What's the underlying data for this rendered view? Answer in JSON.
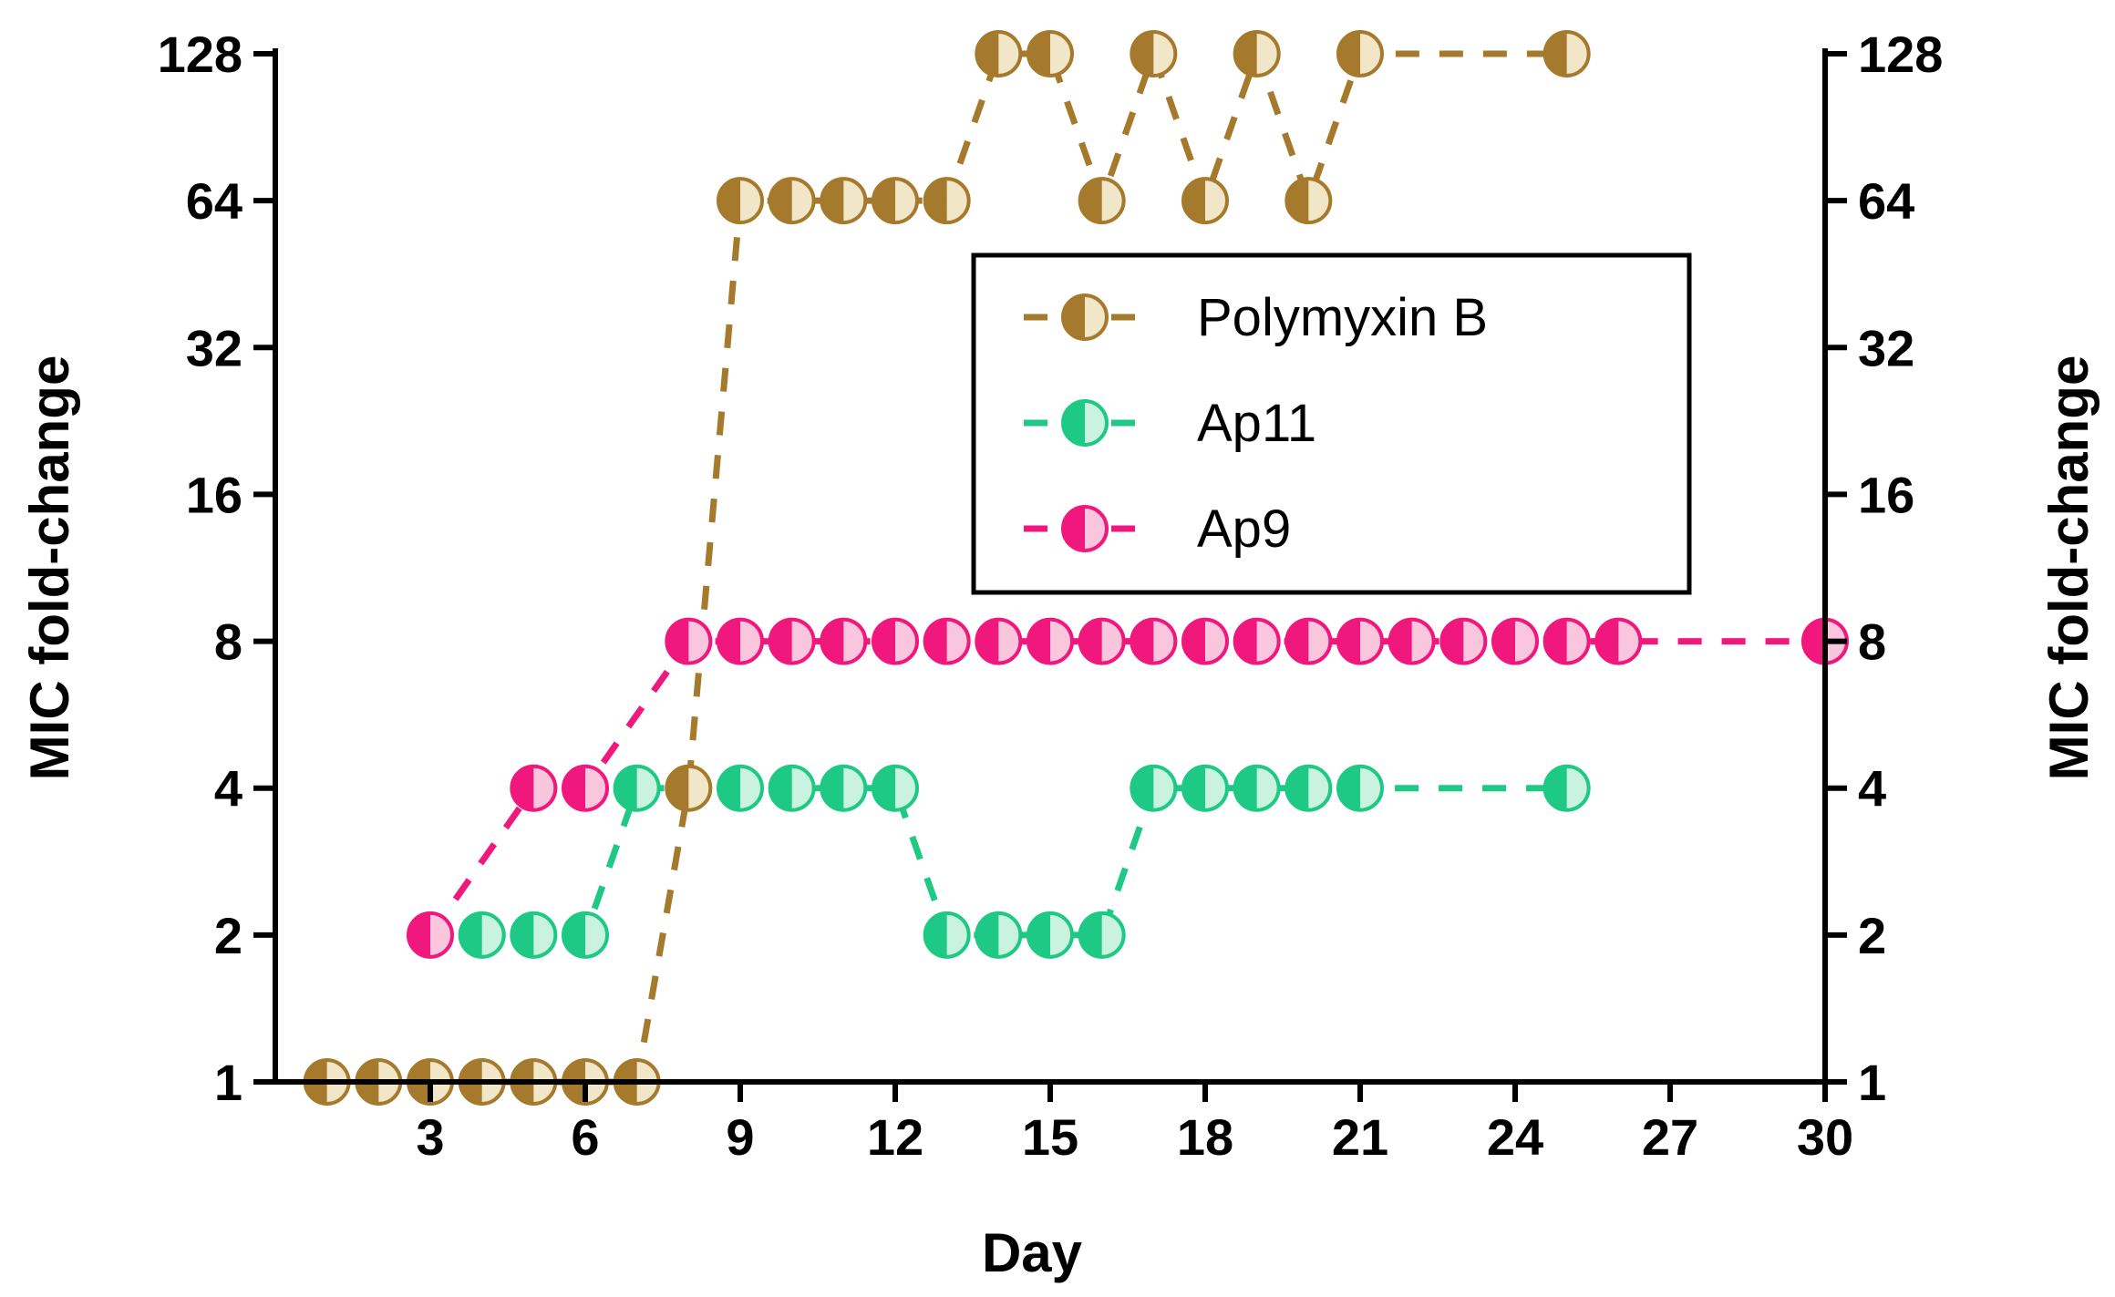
{
  "chart_data": {
    "type": "line",
    "xlabel": "Day",
    "ylabel": "MIC fold-change",
    "ylabel_right": "MIC fold-change",
    "xlim": [
      0,
      30
    ],
    "x_ticks": [
      3,
      6,
      9,
      12,
      15,
      18,
      21,
      24,
      27,
      30
    ],
    "y_scale": "log2",
    "ylim": [
      1,
      128
    ],
    "y_ticks": [
      1,
      2,
      4,
      8,
      16,
      32,
      64,
      128
    ],
    "legend_position": "upper-right-inside",
    "series": [
      {
        "name": "Polymyxin B",
        "color": "#a57a2c",
        "fill_light": "#f1e6c8",
        "x": [
          1,
          2,
          3,
          4,
          5,
          6,
          7,
          8,
          9,
          10,
          11,
          12,
          13,
          14,
          15,
          16,
          17,
          18,
          19,
          20,
          21,
          25
        ],
        "y": [
          1,
          1,
          1,
          1,
          1,
          1,
          1,
          4,
          64,
          64,
          64,
          64,
          64,
          128,
          128,
          64,
          128,
          64,
          128,
          64,
          128,
          128
        ]
      },
      {
        "name": "Ap11",
        "color": "#1ec985",
        "fill_light": "#c9f2df",
        "x": [
          4,
          5,
          6,
          7,
          9,
          10,
          11,
          12,
          13,
          14,
          15,
          16,
          17,
          18,
          19,
          20,
          21,
          25
        ],
        "y": [
          2,
          2,
          2,
          4,
          4,
          4,
          4,
          4,
          2,
          2,
          2,
          2,
          4,
          4,
          4,
          4,
          4,
          4
        ]
      },
      {
        "name": "Ap9",
        "color": "#f0187c",
        "fill_light": "#f9c6dd",
        "x": [
          3,
          5,
          6,
          8,
          9,
          10,
          11,
          12,
          13,
          14,
          15,
          16,
          17,
          18,
          19,
          20,
          21,
          22,
          23,
          24,
          25,
          26,
          30
        ],
        "y": [
          2,
          4,
          4,
          8,
          8,
          8,
          8,
          8,
          8,
          8,
          8,
          8,
          8,
          8,
          8,
          8,
          8,
          8,
          8,
          8,
          8,
          8,
          8
        ]
      }
    ]
  }
}
